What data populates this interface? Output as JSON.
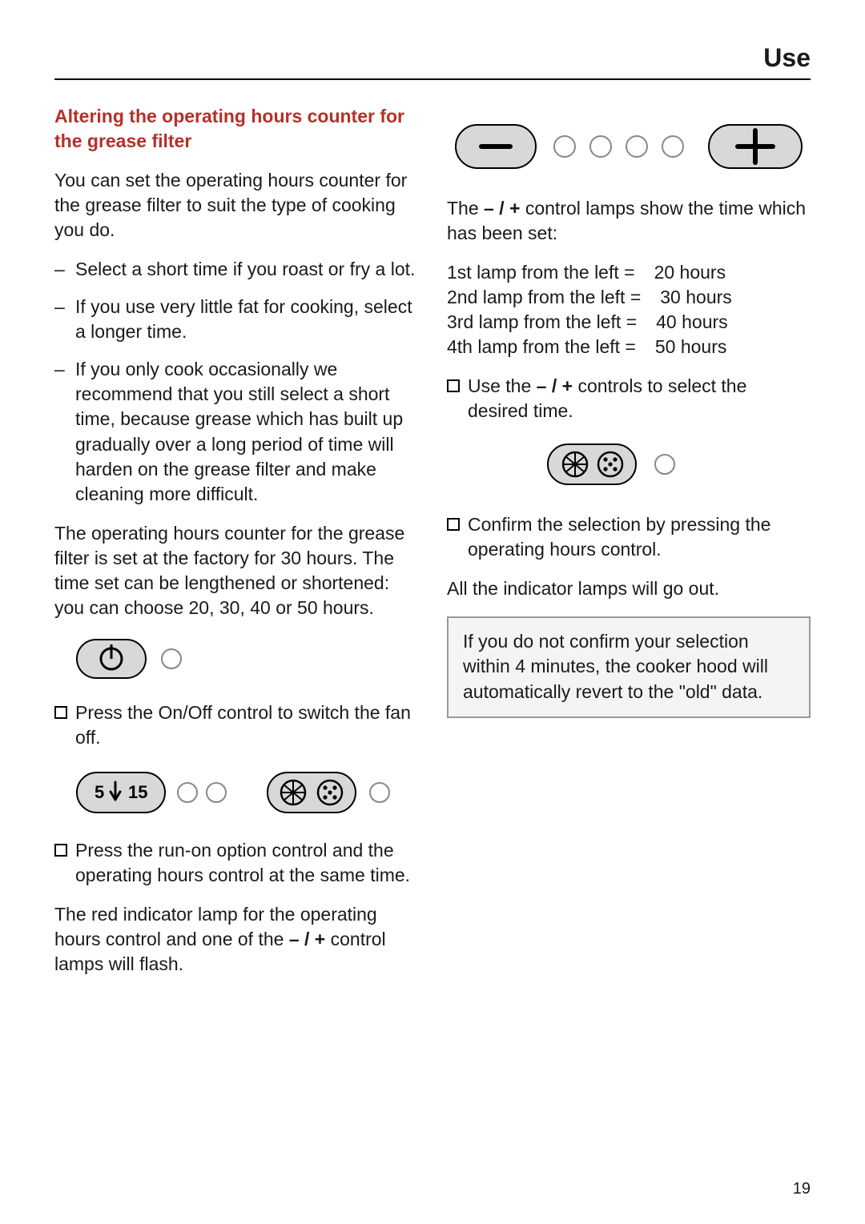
{
  "page_title": "Use",
  "page_number": "19",
  "heading_color": "#b5302a",
  "section_heading": "Altering the operating hours counter for the grease filter",
  "intro": "You can set the operating hours counter for the grease filter to suit the type of cooking you do.",
  "bullets": [
    "Select a short time if you roast or fry a lot.",
    "If you use very little fat for cooking, select a longer time.",
    "If you only cook occasionally we recommend that you still select a short time, because grease which has built up gradually over a long period of time will harden on the grease filter and make cleaning more difficult."
  ],
  "factory_text": "The operating hours counter for the grease filter is set at the factory for 30 hours. The time set can be lengthened or shortened: you can choose 20, 30, 40 or 50 hours.",
  "step_onoff": "Press the On/Off control to switch the fan off.",
  "step_both": "Press the run-on option control and the operating hours control at the same time.",
  "flash_text_a": "The red indicator lamp for the operating hours control and one of the ",
  "flash_text_b": " control lamps will flash.",
  "lamp_intro_a": "The ",
  "lamp_intro_b": " control lamps show the time which has been set:",
  "lamp_rows": [
    {
      "label": "1st lamp from the left =",
      "value": "20 hours"
    },
    {
      "label": "2nd lamp from the left =",
      "value": "30 hours"
    },
    {
      "label": "3rd lamp from the left =",
      "value": "40 hours"
    },
    {
      "label": "4th lamp from the left =",
      "value": "50 hours"
    }
  ],
  "step_select_a": "Use the ",
  "step_select_b": " controls to select the desired time.",
  "step_confirm": "Confirm the selection by pressing the operating hours control.",
  "all_out": "All the indicator lamps will go out.",
  "note": "If you do not confirm your selection within 4 minutes, the cooker hood will automatically revert to the \"old\" data.",
  "symbols": {
    "minus_plus": "– / +"
  },
  "controls_diagram": {
    "minus_label": "–",
    "plus_label": "+",
    "timer_5": "5",
    "timer_15": "15"
  },
  "svg_colors": {
    "fill": "#d8d8d8",
    "stroke": "#000000",
    "lamp_stroke": "#888888"
  }
}
